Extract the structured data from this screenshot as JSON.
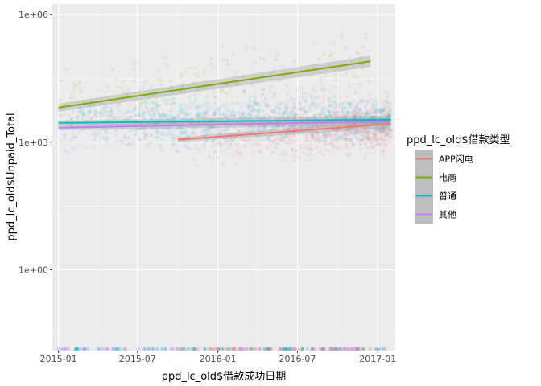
{
  "chart_data": {
    "type": "scatter",
    "xlabel": "ppd_lc_old$借款成功日期",
    "ylabel": "ppd_lc_old$Unpaid_Total",
    "y_scale": "log10",
    "xlim": [
      "2014-12-18",
      "2017-02-10"
    ],
    "ylim_log10": [
      -1.9,
      6.25
    ],
    "x_ticks": [
      {
        "date": "2015-01-01",
        "label": "2015-01"
      },
      {
        "date": "2015-07-01",
        "label": "2015-07"
      },
      {
        "date": "2016-01-01",
        "label": "2016-01"
      },
      {
        "date": "2016-07-01",
        "label": "2016-07"
      },
      {
        "date": "2017-01-01",
        "label": "2017-01"
      }
    ],
    "y_ticks": [
      {
        "value": 1,
        "label": "1e+00"
      },
      {
        "value": 1000,
        "label": "1e+03"
      },
      {
        "value": 1000000,
        "label": "1e+06"
      }
    ],
    "grid": true,
    "legend": {
      "title": "ppd_lc_old$借款类型",
      "position": "right",
      "entries": [
        {
          "label": "APP闪电",
          "color": "#F8766D"
        },
        {
          "label": "电商",
          "color": "#7CAE00"
        },
        {
          "label": "普通",
          "color": "#00BFC4"
        },
        {
          "label": "其他",
          "color": "#C77CFF"
        }
      ]
    },
    "series": [
      {
        "name": "APP闪电",
        "color": "#F8766D",
        "x_range": [
          "2015-10-01",
          "2017-01-31"
        ],
        "y_band": [
          150,
          30000
        ],
        "trend": {
          "x": [
            "2015-10-01",
            "2017-01-31"
          ],
          "y": [
            1150,
            2700
          ]
        }
      },
      {
        "name": "电商",
        "color": "#7CAE00",
        "x_range": [
          "2015-01-01",
          "2016-12-15"
        ],
        "y_band": [
          2000,
          1000000
        ],
        "trend": {
          "x": [
            "2015-01-01",
            "2016-12-15"
          ],
          "y": [
            6500,
            80000
          ]
        }
      },
      {
        "name": "普通",
        "color": "#00BFC4",
        "x_range": [
          "2015-01-01",
          "2017-01-31"
        ],
        "y_band": [
          500,
          50000
        ],
        "trend": {
          "x": [
            "2015-01-01",
            "2017-01-31"
          ],
          "y": [
            2850,
            3400
          ]
        }
      },
      {
        "name": "其他",
        "color": "#C77CFF",
        "x_range": [
          "2015-01-01",
          "2017-01-31"
        ],
        "y_band": [
          200,
          40000
        ],
        "trend": {
          "x": [
            "2015-01-01",
            "2017-01-31"
          ],
          "y": [
            2200,
            3100
          ]
        }
      }
    ]
  }
}
